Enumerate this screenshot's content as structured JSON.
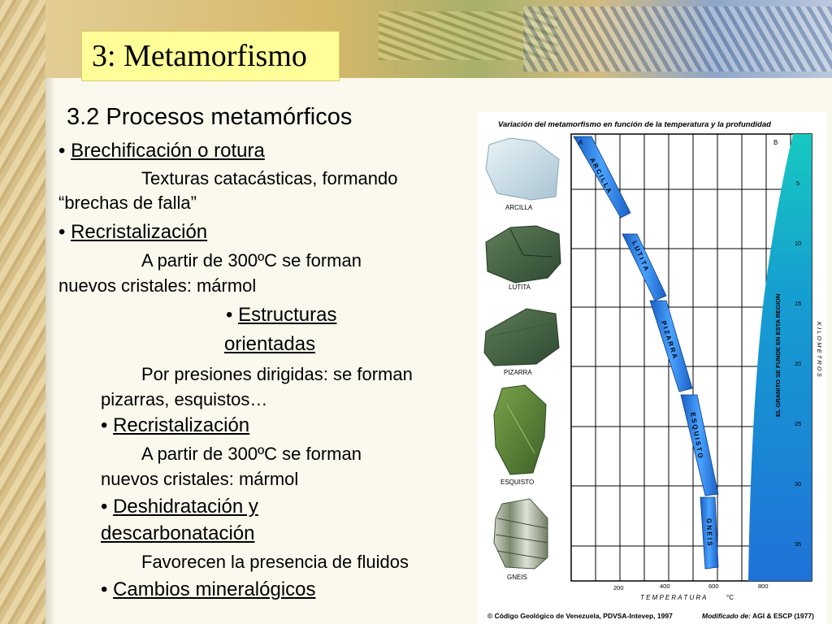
{
  "slide": {
    "title": "3: Metamorfismo",
    "subtitle": "3.2 Procesos metamórficos",
    "items": [
      {
        "bullet": "•",
        "label": "Brechificación o rotura"
      },
      {
        "text1": "Texturas catacásticas, formando",
        "text2": "“brechas de falla”"
      },
      {
        "bullet": "•",
        "label": "Recristalización"
      },
      {
        "text1": "A partir de 300ºC se forman",
        "text2": "nuevos cristales: mármol"
      },
      {
        "bullet": "•",
        "label1": "Estructuras",
        "label2": "orientadas"
      },
      {
        "text1": "Por presiones dirigidas: se forman",
        "text2": "pizarras, esquistos…"
      },
      {
        "bullet": "•",
        "label": "Recristalización"
      },
      {
        "text1": "A partir de 300ºC se forman",
        "text2": "nuevos cristales: mármol"
      },
      {
        "bullet": "•",
        "label1": "Deshidratación y",
        "label2": "descarbonatación"
      },
      {
        "text1": "Favorecen la presencia de fluidos"
      },
      {
        "bullet": "•",
        "label": "Cambios mineralógicos"
      }
    ]
  },
  "figure": {
    "title": "Variación del metamorfismo en función de la temperatura y la profundidad",
    "rocks": [
      "ARCILLA",
      "LUTITA",
      "PIZARRA",
      "ESQUISTO",
      "GNEIS"
    ],
    "band_labels": [
      "A R C I L L A",
      "L U T I T A",
      "P I Z A R R A",
      "E S Q U I S T O",
      "G N E I S"
    ],
    "corner_a": "A",
    "corner_b": "B",
    "granite_label": "EL GRANITO SE FUNDE EN ESTA REGION",
    "depth_ticks": [
      "5",
      "10",
      "15",
      "20",
      "25",
      "30",
      "35"
    ],
    "depth_axis_label": "K I L O M E T R O S",
    "temp_ticks": [
      "200",
      "400",
      "600",
      "800"
    ],
    "temp_axis_label": "T E M P E R A T U R A",
    "temp_unit": "°C",
    "credit_left": "© Código Geológico de Venezuela, PDVSA-Intevep, 1997",
    "credit_right_label": "Modificado de:",
    "credit_right_value": "AGI & ESCP (1977)",
    "colors": {
      "band": "#2f7fe0",
      "granite_top": "#17c9c0",
      "granite_bottom": "#1f72d8",
      "grid": "#000000"
    }
  }
}
